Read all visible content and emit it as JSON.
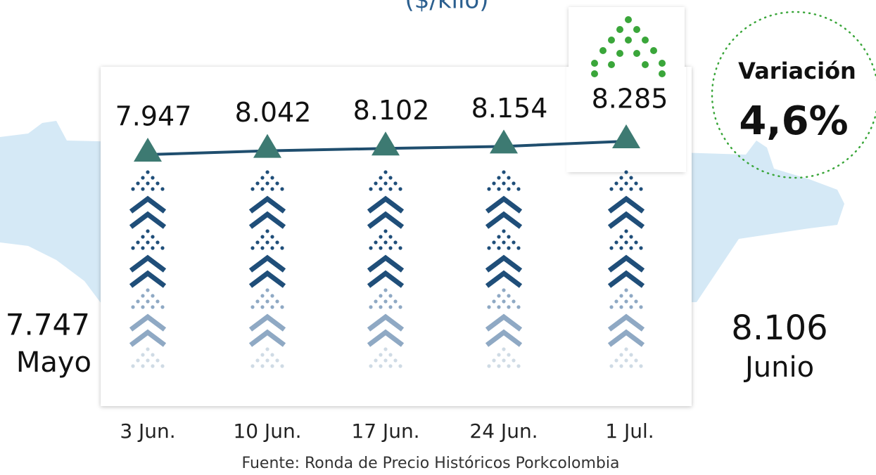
{
  "chart_data": {
    "type": "line",
    "title": "($/kilo)",
    "categories": [
      "3 Jun.",
      "10 Jun.",
      "17 Jun.",
      "24 Jun.",
      "1 Jul."
    ],
    "values": [
      7947,
      8042,
      8102,
      8154,
      8285
    ],
    "value_labels": [
      "7.947",
      "8.042",
      "8.102",
      "8.154",
      "8.285"
    ],
    "color": "#1f4e6e",
    "marker_color": "#3d7a72",
    "ylim": [
      6000,
      10000
    ],
    "summary": [
      {
        "value": "7.747",
        "label": "Mayo"
      },
      {
        "value": "8.106",
        "label": "Junio"
      }
    ],
    "variation": {
      "label": "Variación",
      "value": "4,6%"
    },
    "source": "Fuente: Ronda de Precio Históricos Porkcolombia"
  }
}
